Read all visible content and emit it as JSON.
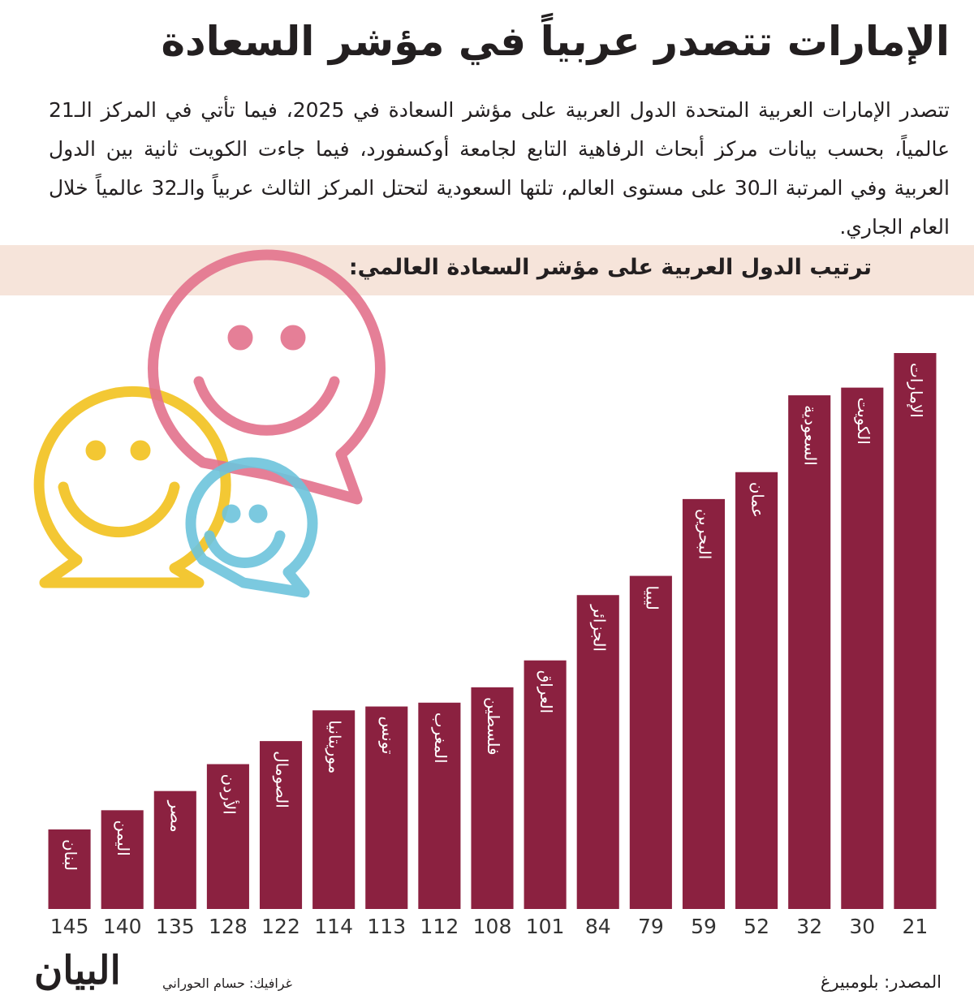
{
  "chart_data": {
    "type": "bar",
    "title": "الإمارات تتصدر عربياً في مؤشر السعادة",
    "description": "تتصدر الإمارات العربية المتحدة الدول العربية على مؤشر السعادة في 2025، فيما تأتي في المركز الـ21 عالمياً، بحسب بيانات مركز أبحاث الرفاهية التابع لجامعة أوكسفورد، فيما جاءت الكويت ثانية بين الدول العربية وفي المرتبة الـ30 على مستوى العالم، تلتها السعودية لتحتل المركز الثالث عربياً والـ32 عالمياً خلال العام الجاري.",
    "subtitle": "ترتيب الدول العربية على مؤشر السعادة العالمي:",
    "categories": [
      "لبنان",
      "اليمن",
      "مصر",
      "الأردن",
      "الصومال",
      "موريتانيا",
      "تونس",
      "المغرب",
      "فلسطين",
      "العراق",
      "الجزائر",
      "ليبيا",
      "البحرين",
      "عمان",
      "السعودية",
      "الكويت",
      "الإمارات"
    ],
    "values": [
      145,
      140,
      135,
      128,
      122,
      114,
      113,
      112,
      108,
      101,
      84,
      79,
      59,
      52,
      32,
      30,
      21
    ],
    "color": "#8b2140",
    "source": "المصدر: بلومبيرغ",
    "credit": "غرافيك: حسام الحوراني",
    "logo": "البيان"
  }
}
